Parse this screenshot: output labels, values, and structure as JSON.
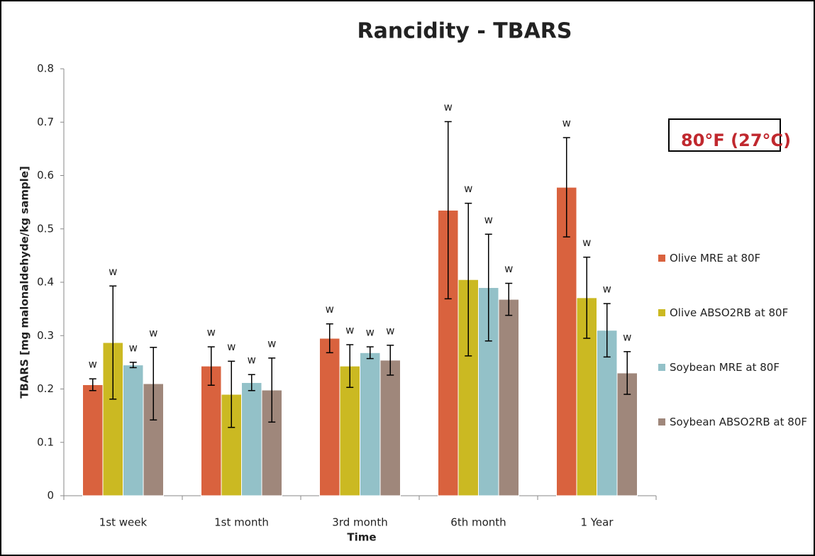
{
  "chart_data": {
    "type": "bar",
    "title": "Rancidity - TBARS",
    "x_label": "Time",
    "y_label": "TBARS [mg malonaldehyde/kg sample]",
    "annotation": "80°F (27°C)",
    "categories": [
      "1st week",
      "1st month",
      "3rd month",
      "6th month",
      "1 Year"
    ],
    "series": [
      {
        "name": "Olive MRE at 80F",
        "color": "#d9623e",
        "values": [
          0.208,
          0.243,
          0.295,
          0.535,
          0.578
        ],
        "errors": [
          0.011,
          0.036,
          0.027,
          0.166,
          0.093
        ],
        "labels": [
          "w",
          "w",
          "w",
          "w",
          "w"
        ]
      },
      {
        "name": "Olive ABSO2RB at 80F",
        "color": "#cbb922",
        "values": [
          0.287,
          0.19,
          0.243,
          0.405,
          0.371
        ],
        "errors": [
          0.106,
          0.062,
          0.04,
          0.143,
          0.076
        ],
        "labels": [
          "w",
          "w",
          "w",
          "w",
          "w"
        ]
      },
      {
        "name": "Soybean MRE at 80F",
        "color": "#93c1c8",
        "values": [
          0.245,
          0.212,
          0.268,
          0.39,
          0.31
        ],
        "errors": [
          0.005,
          0.015,
          0.011,
          0.1,
          0.05
        ],
        "labels": [
          "w",
          "w",
          "w",
          "w",
          "w"
        ]
      },
      {
        "name": "Soybean ABSO2RB at 80F",
        "color": "#9f877b",
        "values": [
          0.21,
          0.198,
          0.254,
          0.368,
          0.23
        ],
        "errors": [
          0.068,
          0.06,
          0.028,
          0.03,
          0.04
        ],
        "labels": [
          "w",
          "w",
          "w",
          "w",
          "w"
        ]
      }
    ],
    "ylim": [
      0,
      0.8
    ],
    "yticks": [
      0,
      0.1,
      0.2,
      0.3,
      0.4,
      0.5,
      0.6,
      0.7,
      0.8
    ],
    "grid": false,
    "legend": "right"
  }
}
